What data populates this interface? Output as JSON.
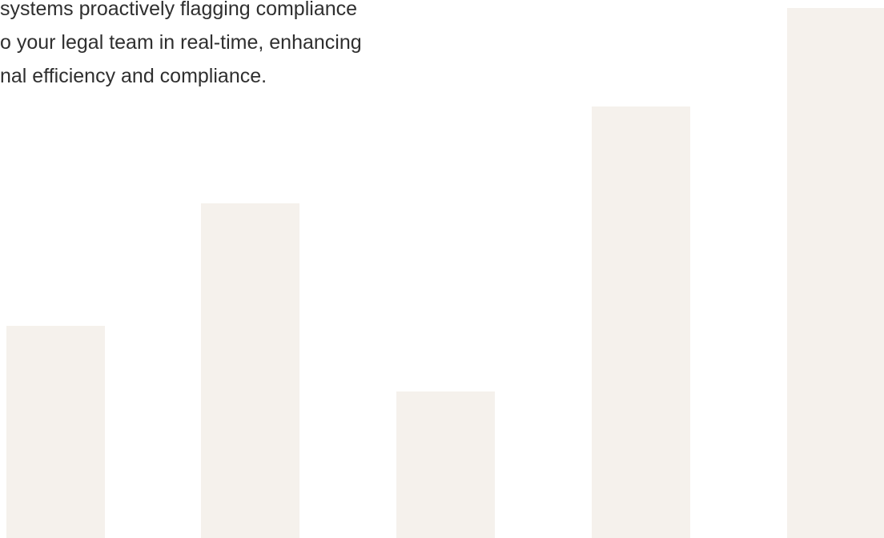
{
  "paragraph": {
    "lines": [
      "systems proactively flagging compliance",
      "o your legal team in real-time, enhancing",
      "nal efficiency and compliance."
    ]
  }
}
